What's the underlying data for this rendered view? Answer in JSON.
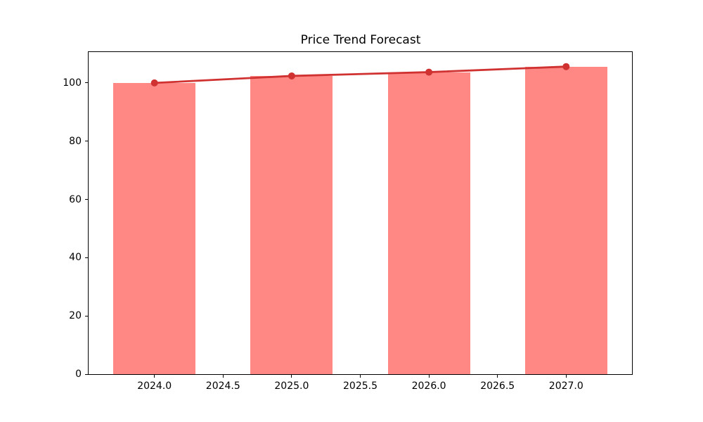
{
  "chart_data": {
    "type": "bar",
    "title": "Price Trend Forecast",
    "xlabel": "",
    "ylabel": "",
    "x": [
      2024,
      2025,
      2026,
      2027
    ],
    "series": [
      {
        "name": "price-bars",
        "type": "bar",
        "values": [
          100.0,
          102.4,
          103.7,
          105.6
        ]
      },
      {
        "name": "trend-line",
        "type": "line",
        "values": [
          100.0,
          102.4,
          103.7,
          105.6
        ]
      }
    ],
    "bar_width": 0.6,
    "bar_color": "#ff8885",
    "line_color": "#d03231",
    "marker": "circle",
    "marker_radius": 5,
    "line_width": 2.8,
    "xlim": [
      2023.52,
      2027.48
    ],
    "ylim": [
      0,
      110.6
    ],
    "x_tick_values": [
      2024.0,
      2024.5,
      2025.0,
      2025.5,
      2026.0,
      2026.5,
      2027.0
    ],
    "x_tick_labels": [
      "2024.0",
      "2024.5",
      "2025.0",
      "2025.5",
      "2026.0",
      "2026.5",
      "2027.0"
    ],
    "y_tick_values": [
      0,
      20,
      40,
      60,
      80,
      100
    ],
    "y_tick_labels": [
      "0",
      "20",
      "40",
      "60",
      "80",
      "100"
    ],
    "grid": false,
    "legend": false,
    "plot_background": "#ffffff",
    "spine_color": "#000000"
  }
}
